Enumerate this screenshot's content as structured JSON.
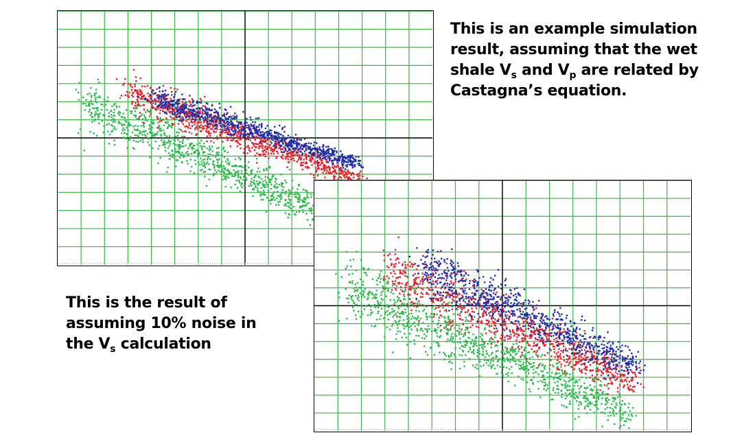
{
  "captions": {
    "top": {
      "line1": "This is an example simulation",
      "line2": "result, assuming that the wet",
      "line3_a": "shale V",
      "line3_sub1": "s",
      "line3_b": " and V",
      "line3_sub2": "p",
      "line3_c": " are related by",
      "line4": "Castagna’s equation."
    },
    "bottom": {
      "line1": "This is the result of",
      "line2": "assuming 10% noise in",
      "line3_a": "the V",
      "line3_sub": "s",
      "line3_b": " calculation"
    }
  },
  "colors": {
    "grid": "#3cb44b",
    "axis": "#000000",
    "green_series": "#2db84b",
    "red_series": "#e8202a",
    "blue_series": "#1c2fa8"
  },
  "chart_data": [
    {
      "type": "scatter",
      "xlim": [
        0,
        1
      ],
      "ylim": [
        0,
        1
      ],
      "grid": true,
      "axis_cross": {
        "x": 0.5,
        "y": 0.5
      },
      "series": [
        {
          "color": "green",
          "trend": {
            "x": [
              0.07,
              0.8
            ],
            "y": [
              0.64,
              0.15
            ]
          },
          "spread": 0.04,
          "count": 1100
        },
        {
          "color": "red",
          "trend": {
            "x": [
              0.19,
              0.8
            ],
            "y": [
              0.68,
              0.34
            ]
          },
          "spread": 0.03,
          "count": 1000
        },
        {
          "color": "blue",
          "trend": {
            "x": [
              0.25,
              0.8
            ],
            "y": [
              0.66,
              0.4
            ]
          },
          "spread": 0.02,
          "count": 900
        }
      ]
    },
    {
      "type": "scatter",
      "xlim": [
        0,
        1
      ],
      "ylim": [
        0,
        1
      ],
      "grid": true,
      "axis_cross": {
        "x": 0.5,
        "y": 0.5
      },
      "series": [
        {
          "color": "green",
          "trend": {
            "x": [
              0.08,
              0.84
            ],
            "y": [
              0.58,
              0.07
            ]
          },
          "spread": 0.055,
          "count": 1100
        },
        {
          "color": "red",
          "trend": {
            "x": [
              0.2,
              0.85
            ],
            "y": [
              0.64,
              0.2
            ]
          },
          "spread": 0.05,
          "count": 950
        },
        {
          "color": "blue",
          "trend": {
            "x": [
              0.28,
              0.85
            ],
            "y": [
              0.66,
              0.26
            ]
          },
          "spread": 0.045,
          "count": 900
        }
      ]
    }
  ]
}
